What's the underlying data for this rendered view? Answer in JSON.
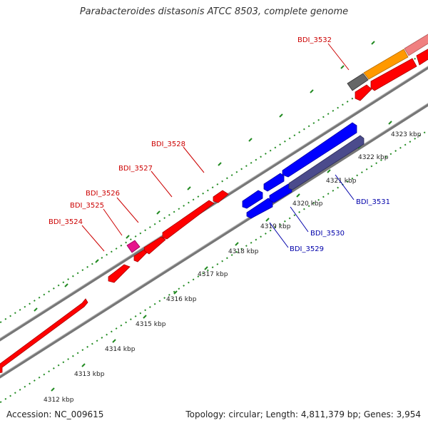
{
  "title": "Parabacteroides distasonis ATCC 8503, complete genome",
  "footer": {
    "accession": "Accession: NC_009615",
    "summary": "Topology: circular; Length: 4,811,379 bp; Genes: 3,954"
  },
  "colors": {
    "forward_gene": "#ff0000",
    "reverse_gene": "#0000ff",
    "reverse_gene_dark": "#4b4b8c",
    "highlight_gene": "#e6148c",
    "orange_gene": "#ff9900",
    "pink_gene": "#f08080",
    "gray_gene": "#666666",
    "backbone": "#777777",
    "tick": "#228b22",
    "label_forward": "#cc0000",
    "label_reverse": "#0000aa"
  },
  "kbp_ticks": [
    "4312 kbp",
    "4313 kbp",
    "4314 kbp",
    "4315 kbp",
    "4316 kbp",
    "4317 kbp",
    "4318 kbp",
    "4319 kbp",
    "4320 kbp",
    "4321 kbp",
    "4322 kbp",
    "4323 kbp"
  ],
  "genes": {
    "forward": [
      "BDI_3524",
      "BDI_3525",
      "BDI_3526",
      "BDI_3527",
      "BDI_3528",
      "BDI_3532"
    ],
    "reverse": [
      "BDI_3529",
      "BDI_3530",
      "BDI_3531"
    ]
  }
}
